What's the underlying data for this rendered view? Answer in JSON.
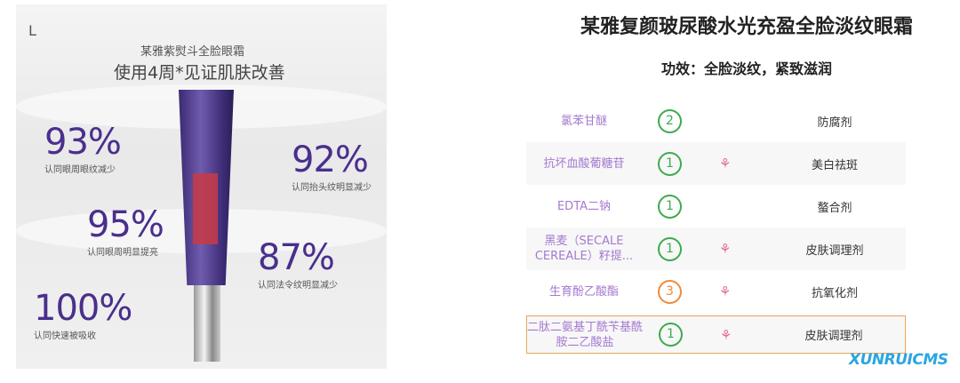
{
  "promo": {
    "brand": "L",
    "title_line1": "某雅紫熨斗全脸眼霜",
    "title_line2": "使用4周*见证肌肤改善",
    "stats": [
      {
        "pct": "93%",
        "caption": "认同眼周眼纹减少"
      },
      {
        "pct": "92%",
        "caption": "认同抬头纹明显减少"
      },
      {
        "pct": "95%",
        "caption": "认同眼周明显提亮"
      },
      {
        "pct": "87%",
        "caption": "认同法令纹明显减少"
      },
      {
        "pct": "100%",
        "caption": "认同快速被吸收"
      }
    ]
  },
  "product": {
    "title": "某雅复颜玻尿酸水光充盈全脸淡纹眼霜",
    "subtitle": "功效：全脸淡纹，紧致滋润"
  },
  "ingredients": [
    {
      "name": "氯苯甘醚",
      "score": "2",
      "score_color": "#3cab4d",
      "acne": false,
      "function": "防腐剂"
    },
    {
      "name": "抗坏血酸葡糖苷",
      "score": "1",
      "score_color": "#3cab4d",
      "acne": true,
      "function": "美白祛斑"
    },
    {
      "name": "EDTA二钠",
      "score": "1",
      "score_color": "#3cab4d",
      "acne": false,
      "function": "螯合剂"
    },
    {
      "name": "黑麦（SECALE CEREALE）籽提...",
      "score": "1",
      "score_color": "#3cab4d",
      "acne": true,
      "function": "皮肤调理剂"
    },
    {
      "name": "生育酚乙酸酯",
      "score": "3",
      "score_color": "#f08a3c",
      "acne": true,
      "function": "抗氧化剂"
    },
    {
      "name": "二肽二氨基丁酰苄基酰胺二乙酸盐",
      "score": "1",
      "score_color": "#3cab4d",
      "acne": true,
      "function": "皮肤调理剂",
      "highlighted": true
    }
  ],
  "watermark": "XUNRUICMS"
}
